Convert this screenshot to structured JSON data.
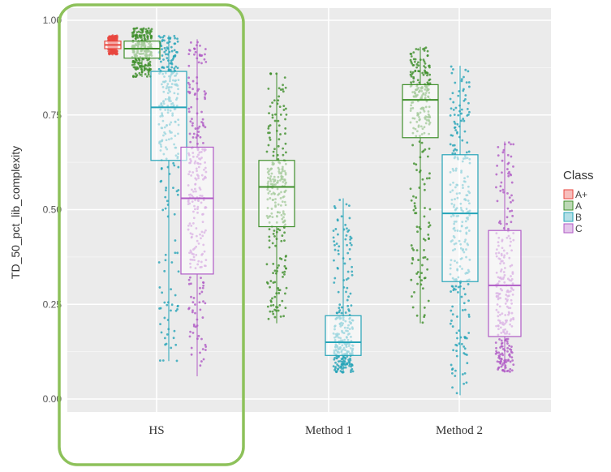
{
  "chart_data": {
    "type": "box",
    "xlabel": "",
    "ylabel": "TD_50_pct_lib_complexity",
    "ylim": [
      0,
      1
    ],
    "y_ticks": [
      "0.00",
      "0.25",
      "0.50",
      "0.75",
      "1.00"
    ],
    "categories": [
      "HS",
      "Method 1",
      "Method 2"
    ],
    "grid": true,
    "jitter_points": true,
    "highlight": {
      "category": "HS",
      "color": "#8dc15a"
    },
    "legend": {
      "title": "Class",
      "position": "right",
      "entries": [
        {
          "label": "A+",
          "color": "#e8463e"
        },
        {
          "label": "A",
          "color": "#3f8f2b"
        },
        {
          "label": "B",
          "color": "#25a4b8"
        },
        {
          "label": "C",
          "color": "#b05bc6"
        }
      ]
    },
    "boxes": [
      {
        "category": "HS",
        "class": "A+",
        "min": 0.91,
        "q1": 0.925,
        "median": 0.935,
        "q3": 0.945,
        "max": 0.96
      },
      {
        "category": "HS",
        "class": "A",
        "min": 0.85,
        "q1": 0.9,
        "median": 0.925,
        "q3": 0.945,
        "max": 0.98
      },
      {
        "category": "HS",
        "class": "B",
        "min": 0.1,
        "q1": 0.63,
        "median": 0.77,
        "q3": 0.865,
        "max": 0.96
      },
      {
        "category": "HS",
        "class": "C",
        "min": 0.06,
        "q1": 0.33,
        "median": 0.53,
        "q3": 0.665,
        "max": 0.95
      },
      {
        "category": "Method 1",
        "class": "A",
        "min": 0.2,
        "q1": 0.455,
        "median": 0.56,
        "q3": 0.63,
        "max": 0.86
      },
      {
        "category": "Method 1",
        "class": "B",
        "min": 0.07,
        "q1": 0.115,
        "median": 0.15,
        "q3": 0.22,
        "max": 0.53
      },
      {
        "category": "Method 2",
        "class": "A",
        "min": 0.2,
        "q1": 0.69,
        "median": 0.79,
        "q3": 0.83,
        "max": 0.93
      },
      {
        "category": "Method 2",
        "class": "B",
        "min": 0.01,
        "q1": 0.31,
        "median": 0.49,
        "q3": 0.645,
        "max": 0.88
      },
      {
        "category": "Method 2",
        "class": "C",
        "min": 0.07,
        "q1": 0.165,
        "median": 0.3,
        "q3": 0.445,
        "max": 0.68
      }
    ]
  }
}
